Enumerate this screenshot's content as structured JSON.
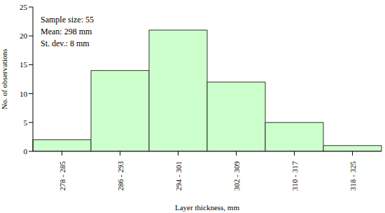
{
  "chart_data": {
    "type": "bar",
    "categories": [
      "278 - 285",
      "286 - 293",
      "294 - 301",
      "302 - 309",
      "310 - 317",
      "318 - 325"
    ],
    "values": [
      2,
      14,
      21,
      12,
      5,
      1
    ],
    "color": "#ccffcc",
    "ylim": [
      0,
      25
    ],
    "yticks": [
      0,
      5,
      10,
      15,
      20,
      25
    ],
    "grid": false,
    "x_label": "Layer thickness, mm",
    "y_label": "No. of observations",
    "annotations": [
      "Sample size: 55",
      "Mean: 298 mm",
      "St. dev.: 8 mm"
    ]
  }
}
